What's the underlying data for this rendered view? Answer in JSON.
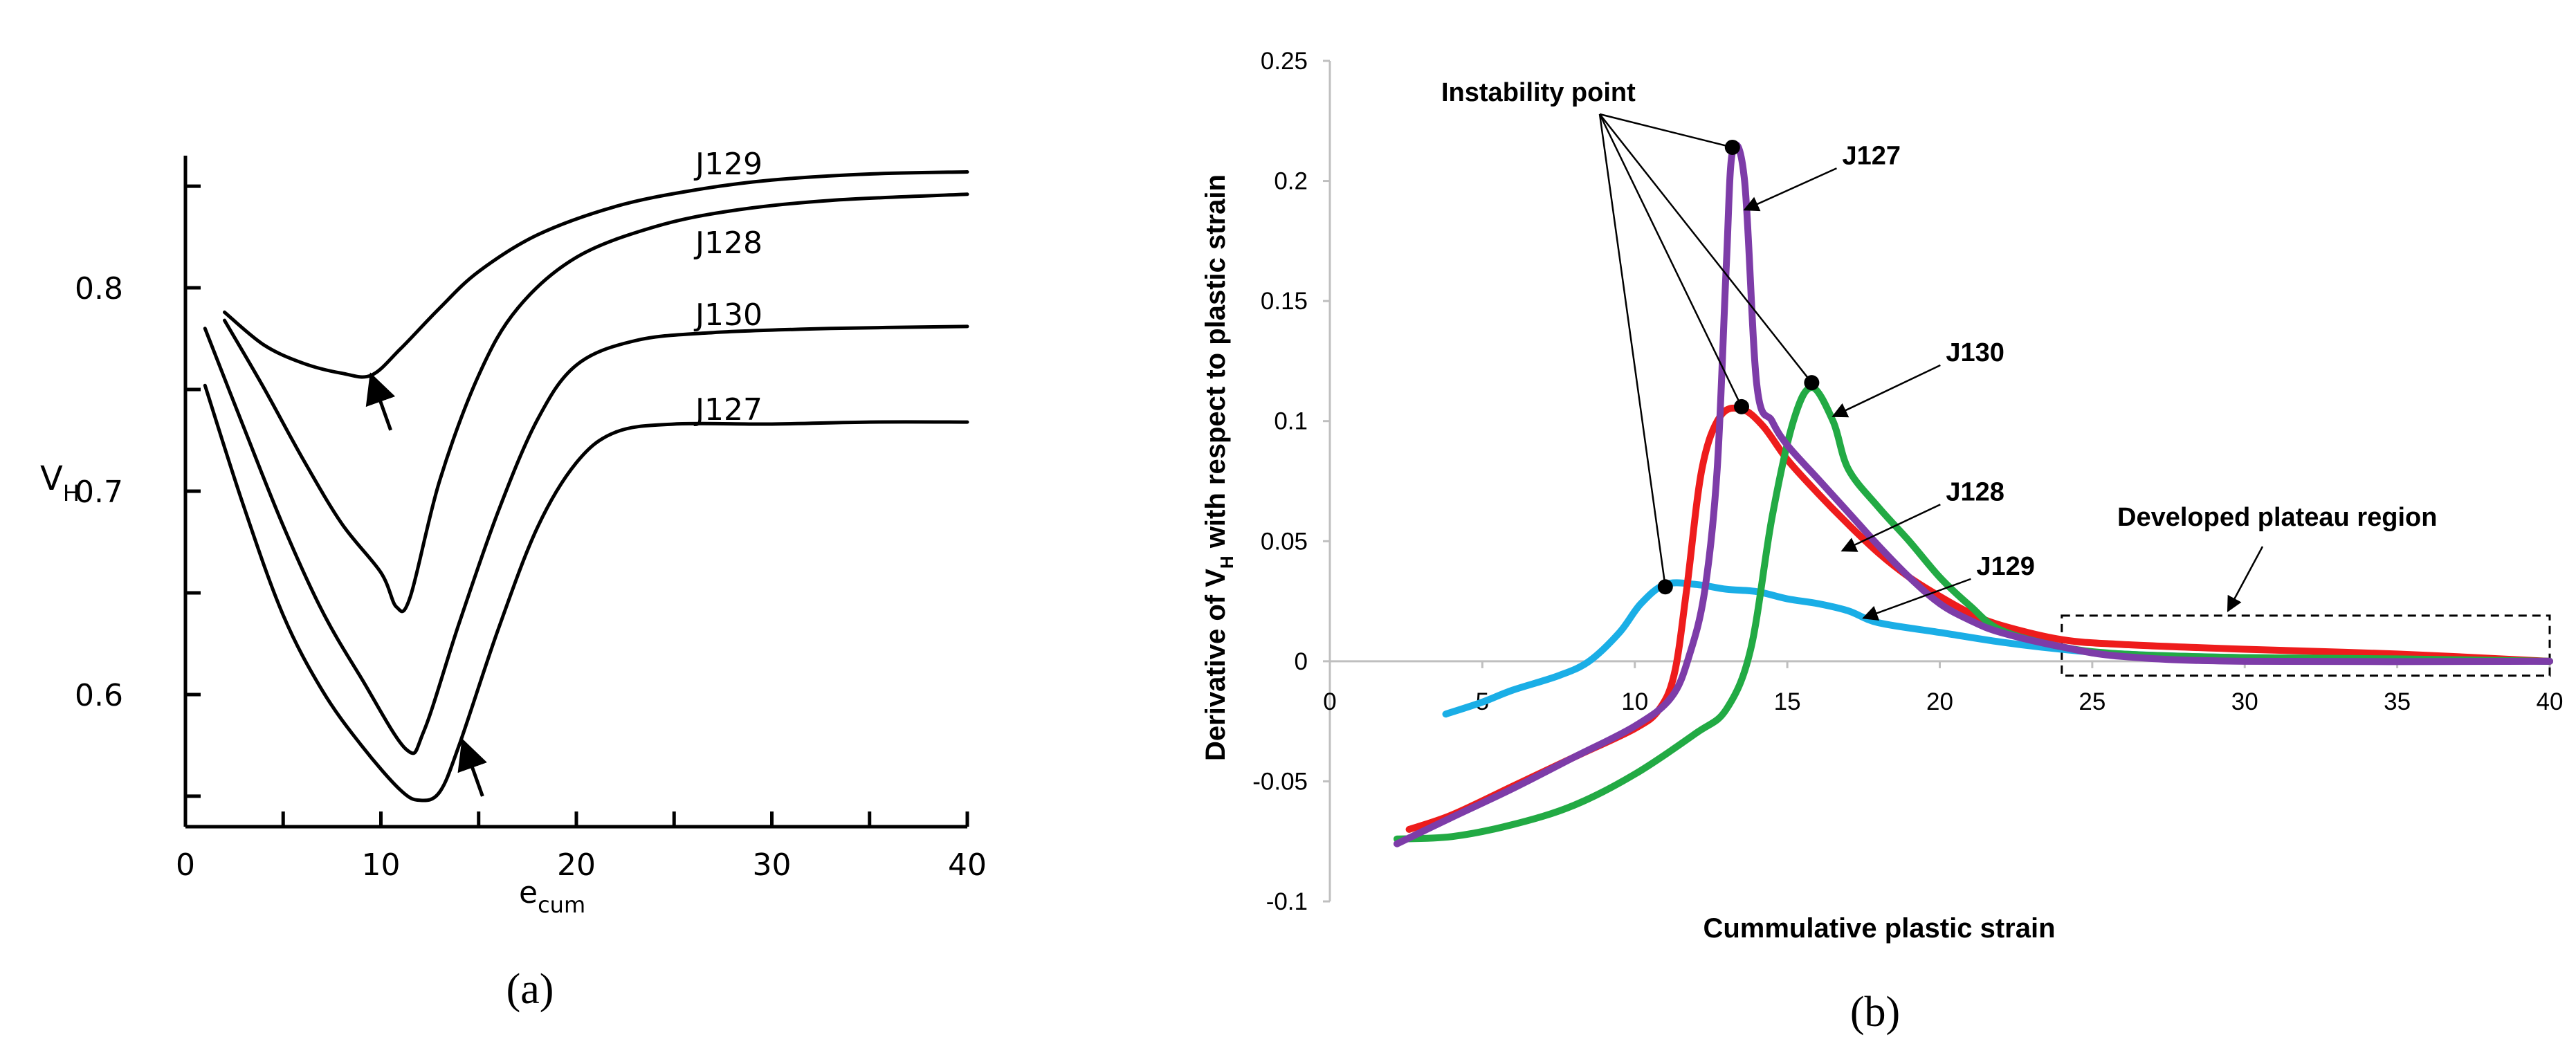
{
  "chart_data": [
    {
      "panel": "(a)",
      "type": "line",
      "xlabel": "e",
      "xlabel_sub": "cum",
      "ylabel": "V",
      "ylabel_sub": "H",
      "xlim": [
        0,
        40
      ],
      "ylim": [
        0.535,
        0.865
      ],
      "x_ticks": [
        0,
        10,
        20,
        30,
        40
      ],
      "x_minor_ticks": [
        5,
        15,
        25,
        35
      ],
      "y_ticks": [
        0.6,
        0.7,
        0.8
      ],
      "y_minor_ticks": [
        0.55,
        0.65,
        0.75,
        0.85
      ],
      "series": [
        {
          "name": "J129",
          "points": [
            [
              2,
              0.788
            ],
            [
              4,
              0.772
            ],
            [
              6,
              0.763
            ],
            [
              8,
              0.758
            ],
            [
              9.5,
              0.757
            ],
            [
              11,
              0.77
            ],
            [
              13,
              0.79
            ],
            [
              15,
              0.808
            ],
            [
              18,
              0.826
            ],
            [
              22,
              0.84
            ],
            [
              26,
              0.848
            ],
            [
              30,
              0.853
            ],
            [
              35,
              0.856
            ],
            [
              40,
              0.857
            ]
          ]
        },
        {
          "name": "J128",
          "points": [
            [
              2,
              0.784
            ],
            [
              4,
              0.751
            ],
            [
              6,
              0.716
            ],
            [
              8,
              0.684
            ],
            [
              10,
              0.66
            ],
            [
              10.8,
              0.643
            ],
            [
              11.5,
              0.648
            ],
            [
              13,
              0.705
            ],
            [
              15,
              0.757
            ],
            [
              17,
              0.79
            ],
            [
              20,
              0.815
            ],
            [
              24,
              0.83
            ],
            [
              28,
              0.838
            ],
            [
              33,
              0.843
            ],
            [
              40,
              0.846
            ]
          ]
        },
        {
          "name": "J130",
          "points": [
            [
              1,
              0.78
            ],
            [
              3,
              0.731
            ],
            [
              5,
              0.683
            ],
            [
              7,
              0.641
            ],
            [
              9,
              0.608
            ],
            [
              11.3,
              0.573
            ],
            [
              12.2,
              0.582
            ],
            [
              14,
              0.635
            ],
            [
              16,
              0.69
            ],
            [
              18,
              0.735
            ],
            [
              20,
              0.762
            ],
            [
              23,
              0.774
            ],
            [
              27,
              0.778
            ],
            [
              33,
              0.78
            ],
            [
              40,
              0.781
            ]
          ]
        },
        {
          "name": "J127",
          "points": [
            [
              1,
              0.752
            ],
            [
              3,
              0.692
            ],
            [
              5,
              0.639
            ],
            [
              7,
              0.602
            ],
            [
              9,
              0.575
            ],
            [
              11,
              0.553
            ],
            [
              12,
              0.548
            ],
            [
              13,
              0.552
            ],
            [
              14,
              0.575
            ],
            [
              16,
              0.632
            ],
            [
              18,
              0.682
            ],
            [
              20,
              0.714
            ],
            [
              22,
              0.729
            ],
            [
              25,
              0.733
            ],
            [
              30,
              0.733
            ],
            [
              35,
              0.734
            ],
            [
              40,
              0.734
            ]
          ]
        }
      ],
      "series_labels": [
        "J129",
        "J128",
        "J130",
        "J127"
      ],
      "annotations": [
        {
          "type": "arrow",
          "tip": [
            9.5,
            0.757
          ],
          "tail": [
            10.5,
            0.73
          ]
        },
        {
          "type": "arrow",
          "tip": [
            14.2,
            0.577
          ],
          "tail": [
            15.2,
            0.55
          ]
        }
      ]
    },
    {
      "panel": "(b)",
      "type": "line",
      "xlabel": "Cummulative plastic strain",
      "ylabel": "Derivative of V",
      "ylabel_sub": "H",
      "ylabel_tail": " with respect to plastic strain",
      "xlim": [
        0,
        40
      ],
      "ylim": [
        -0.1,
        0.25
      ],
      "x_ticks": [
        0,
        5,
        10,
        15,
        20,
        25,
        30,
        35,
        40
      ],
      "y_ticks": [
        -0.1,
        -0.05,
        0,
        0.05,
        0.1,
        0.15,
        0.2,
        0.25
      ],
      "series": [
        {
          "name": "J129",
          "color": "#1aaee6",
          "points": [
            [
              3.8,
              -0.022
            ],
            [
              5,
              -0.017
            ],
            [
              6,
              -0.012
            ],
            [
              7.5,
              -0.006
            ],
            [
              8.5,
              0.0
            ],
            [
              9.5,
              0.012
            ],
            [
              10.2,
              0.024
            ],
            [
              11,
              0.032
            ],
            [
              12,
              0.032
            ],
            [
              13,
              0.03
            ],
            [
              14,
              0.029
            ],
            [
              15,
              0.026
            ],
            [
              16,
              0.024
            ],
            [
              17,
              0.021
            ],
            [
              18,
              0.016
            ],
            [
              20,
              0.012
            ],
            [
              22,
              0.008
            ],
            [
              24,
              0.005
            ],
            [
              26,
              0.003
            ],
            [
              30,
              0.0015
            ],
            [
              35,
              0.001
            ],
            [
              40,
              0.0
            ]
          ]
        },
        {
          "name": "J128",
          "color": "#ee1c1c",
          "points": [
            [
              2.6,
              -0.07
            ],
            [
              4,
              -0.064
            ],
            [
              6,
              -0.052
            ],
            [
              8,
              -0.04
            ],
            [
              10,
              -0.028
            ],
            [
              10.8,
              -0.02
            ],
            [
              11.3,
              -0.005
            ],
            [
              11.7,
              0.03
            ],
            [
              12.2,
              0.08
            ],
            [
              12.8,
              0.102
            ],
            [
              13.5,
              0.105
            ],
            [
              14.2,
              0.098
            ],
            [
              15,
              0.084
            ],
            [
              16,
              0.07
            ],
            [
              17,
              0.057
            ],
            [
              18,
              0.045
            ],
            [
              19,
              0.035
            ],
            [
              20,
              0.027
            ],
            [
              21,
              0.02
            ],
            [
              22,
              0.015
            ],
            [
              24,
              0.009
            ],
            [
              26,
              0.007
            ],
            [
              30,
              0.005
            ],
            [
              35,
              0.003
            ],
            [
              40,
              0.0
            ]
          ]
        },
        {
          "name": "J130",
          "color": "#22aa44",
          "points": [
            [
              2.2,
              -0.074
            ],
            [
              4,
              -0.073
            ],
            [
              6,
              -0.068
            ],
            [
              8,
              -0.06
            ],
            [
              10,
              -0.047
            ],
            [
              12,
              -0.03
            ],
            [
              13,
              -0.02
            ],
            [
              13.8,
              0.005
            ],
            [
              14.5,
              0.06
            ],
            [
              15.2,
              0.1
            ],
            [
              15.8,
              0.114
            ],
            [
              16.5,
              0.1
            ],
            [
              17,
              0.08
            ],
            [
              18,
              0.064
            ],
            [
              19,
              0.05
            ],
            [
              20,
              0.035
            ],
            [
              21,
              0.023
            ],
            [
              22,
              0.013
            ],
            [
              24,
              0.006
            ],
            [
              26,
              0.003
            ],
            [
              30,
              0.0015
            ],
            [
              35,
              0.001
            ],
            [
              40,
              0.0
            ]
          ]
        },
        {
          "name": "J127",
          "color": "#7d3ca8",
          "points": [
            [
              2.2,
              -0.076
            ],
            [
              4,
              -0.065
            ],
            [
              6,
              -0.053
            ],
            [
              8,
              -0.04
            ],
            [
              10,
              -0.027
            ],
            [
              11.2,
              -0.015
            ],
            [
              11.8,
              0.003
            ],
            [
              12.3,
              0.03
            ],
            [
              12.7,
              0.08
            ],
            [
              13,
              0.165
            ],
            [
              13.2,
              0.212
            ],
            [
              13.6,
              0.2
            ],
            [
              14,
              0.115
            ],
            [
              14.5,
              0.1
            ],
            [
              15,
              0.09
            ],
            [
              16,
              0.076
            ],
            [
              17,
              0.062
            ],
            [
              18,
              0.048
            ],
            [
              19,
              0.035
            ],
            [
              20,
              0.024
            ],
            [
              21,
              0.017
            ],
            [
              22,
              0.012
            ],
            [
              24,
              0.006
            ],
            [
              26,
              0.002
            ],
            [
              30,
              0.0
            ],
            [
              40,
              0.0
            ]
          ]
        }
      ],
      "instability_points": [
        [
          11,
          0.031
        ],
        [
          13.2,
          0.214
        ],
        [
          13.5,
          0.106
        ],
        [
          15.8,
          0.116
        ]
      ],
      "annotations": {
        "instability_label": "Instability point",
        "plateau_label": "Developed plateau region",
        "plateau_box_x": [
          24,
          40
        ],
        "plateau_box_y": [
          -0.006,
          0.019
        ],
        "series_callouts": [
          {
            "label": "J127",
            "target": [
              13.6,
              0.188
            ],
            "text_at": [
              16.8,
              0.207
            ]
          },
          {
            "label": "J130",
            "target": [
              16.5,
              0.102
            ],
            "text_at": [
              20.2,
              0.125
            ]
          },
          {
            "label": "J128",
            "target": [
              16.8,
              0.046
            ],
            "text_at": [
              20.2,
              0.067
            ]
          },
          {
            "label": "J129",
            "target": [
              17.5,
              0.018
            ],
            "text_at": [
              21.2,
              0.036
            ]
          }
        ]
      }
    }
  ],
  "panel_labels": {
    "a": "(a)",
    "b": "(b)"
  }
}
